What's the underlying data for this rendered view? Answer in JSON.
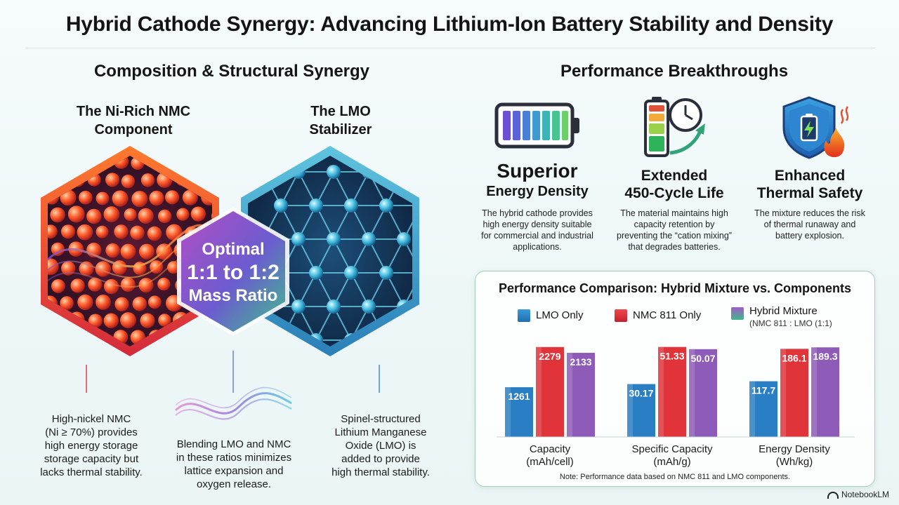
{
  "title": "Hybrid Cathode Synergy: Advancing Lithium-Ion Battery Stability and Density",
  "left": {
    "heading": "Composition & Structural Synergy",
    "nmc": {
      "label_line1": "The Ni-Rich NMC",
      "label_line2": "Component",
      "caption_lines": [
        "High-nickel NMC",
        "(Ni ≥ 70%) provides",
        "high energy storage",
        "storage capacity but",
        "lacks thermal stability."
      ]
    },
    "lmo": {
      "label_line1": "The LMO",
      "label_line2": "Stabilizer",
      "caption_lines": [
        "Spinel-structured",
        "Lithium Manganese",
        "Oxide (LMO) is",
        "added to provide",
        "high thermal stability."
      ]
    },
    "ratio": {
      "line1": "Optimal",
      "line2": "1:1 to 1:2",
      "line3": "Mass Ratio"
    },
    "blend_caption_lines": [
      "Blending LMO and NMC",
      "in these ratios minimizes",
      "lattice expansion and",
      "oxygen release."
    ]
  },
  "right": {
    "heading": "Performance Breakthroughs",
    "features": [
      {
        "icon": "battery-full-icon",
        "title_line1": "Superior",
        "title_line2": "Energy Density",
        "desc_lines": [
          "The hybrid cathode provides",
          "high energy density suitable",
          "for commercial and industrial",
          "applications."
        ]
      },
      {
        "icon": "battery-clock-icon",
        "title_line1": "Extended",
        "title_line2": "450-Cycle Life",
        "desc_lines": [
          "The material maintains high",
          "capacity retention by",
          "preventing the “cation mixing”",
          "that degrades batteries."
        ]
      },
      {
        "icon": "shield-fire-icon",
        "title_line1": "Enhanced",
        "title_line2": "Thermal Safety",
        "desc_lines": [
          "The mixture reduces the risk",
          "of thermal runaway and",
          "battery explosion."
        ]
      }
    ]
  },
  "chart_data": {
    "type": "bar",
    "title": "Performance Comparison: Hybrid Mixture vs. Components",
    "categories": [
      "Capacity\n(mAh/cell)",
      "Specific Capacity\n(mAh/g)",
      "Energy Density\n(Wh/kg)"
    ],
    "category_lines": [
      [
        "Capacity",
        "(mAh/cell)"
      ],
      [
        "Specific Capacity",
        "(mAh/g)"
      ],
      [
        "Energy Density",
        "(Wh/kg)"
      ]
    ],
    "series": [
      {
        "name": "LMO Only",
        "values": [
          1261,
          30.17,
          117.7
        ],
        "labels": [
          "1261",
          "30.17",
          "117.7"
        ],
        "color": "#2a7fc4"
      },
      {
        "name": "NMC 811 Only",
        "values": [
          2279,
          51.33,
          186.1
        ],
        "labels": [
          "2279",
          "51.33",
          "186.1"
        ],
        "color": "#e0333a"
      },
      {
        "name": "Hybrid Mixture",
        "sub": "(NMC 811 : LMO (1:1)",
        "values": [
          2133,
          50.07,
          189.3
        ],
        "labels": [
          "2133",
          "50.07",
          "189.3"
        ],
        "color": "#8e5bb8"
      }
    ],
    "group_max": [
      2400,
      54,
      200
    ],
    "note": "Note: Performance data based on NMC 811 and LMO components."
  },
  "brand": "NotebookLM"
}
